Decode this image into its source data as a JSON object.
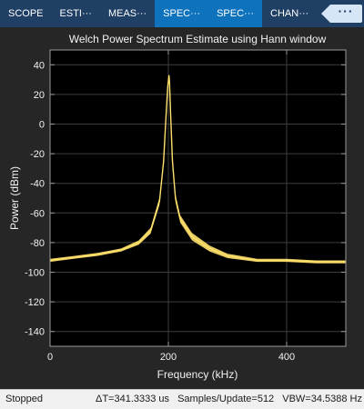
{
  "tabs": [
    {
      "label": "SCOPE",
      "active": false
    },
    {
      "label": "ESTI···",
      "active": false
    },
    {
      "label": "MEAS···",
      "active": false
    },
    {
      "label": "SPEC···",
      "active": true
    },
    {
      "label": "SPEC···",
      "active": true
    },
    {
      "label": "CHAN···",
      "active": false
    }
  ],
  "overflow_label": "···",
  "colors": {
    "trace": "#ffe16b",
    "axes_bg": "#000000",
    "figure_bg": "#262626",
    "tab_bar": "#1f3f64",
    "tab_active": "#0e72bd"
  },
  "chart_data": {
    "type": "line",
    "title": "Welch Power Spectrum Estimate using Hann window",
    "xlabel": "Frequency (kHz)",
    "ylabel": "Power (dBm)",
    "xlim": [
      0,
      500
    ],
    "ylim": [
      -150,
      50
    ],
    "xticks": [
      0,
      200,
      400
    ],
    "yticks": [
      40,
      20,
      0,
      -20,
      -40,
      -60,
      -80,
      -100,
      -120,
      -140
    ],
    "grid": true,
    "series": [
      {
        "color": "#ffe16b",
        "x": [
          0,
          40,
          80,
          120,
          150,
          170,
          185,
          192,
          196,
          199,
          201,
          202,
          204,
          207,
          212,
          220,
          240,
          270,
          300,
          350,
          400,
          450,
          500
        ],
        "y": [
          -92,
          -90,
          -88,
          -85,
          -80,
          -72,
          -52,
          -25,
          5,
          25,
          33,
          28,
          5,
          -25,
          -50,
          -64,
          -76,
          -84,
          -89,
          -92,
          -92,
          -93,
          -93
        ],
        "band_width_db": [
          2,
          2,
          2,
          2,
          3,
          4,
          5,
          5,
          3,
          2,
          1,
          2,
          3,
          5,
          5,
          5,
          5,
          4,
          3,
          2,
          2,
          2,
          2
        ]
      }
    ]
  },
  "status": {
    "state": "Stopped",
    "delta_t": "ΔT=341.3333 us",
    "samples_per_update": "Samples/Update=512",
    "vbw": "VBW=34.5388 Hz"
  }
}
